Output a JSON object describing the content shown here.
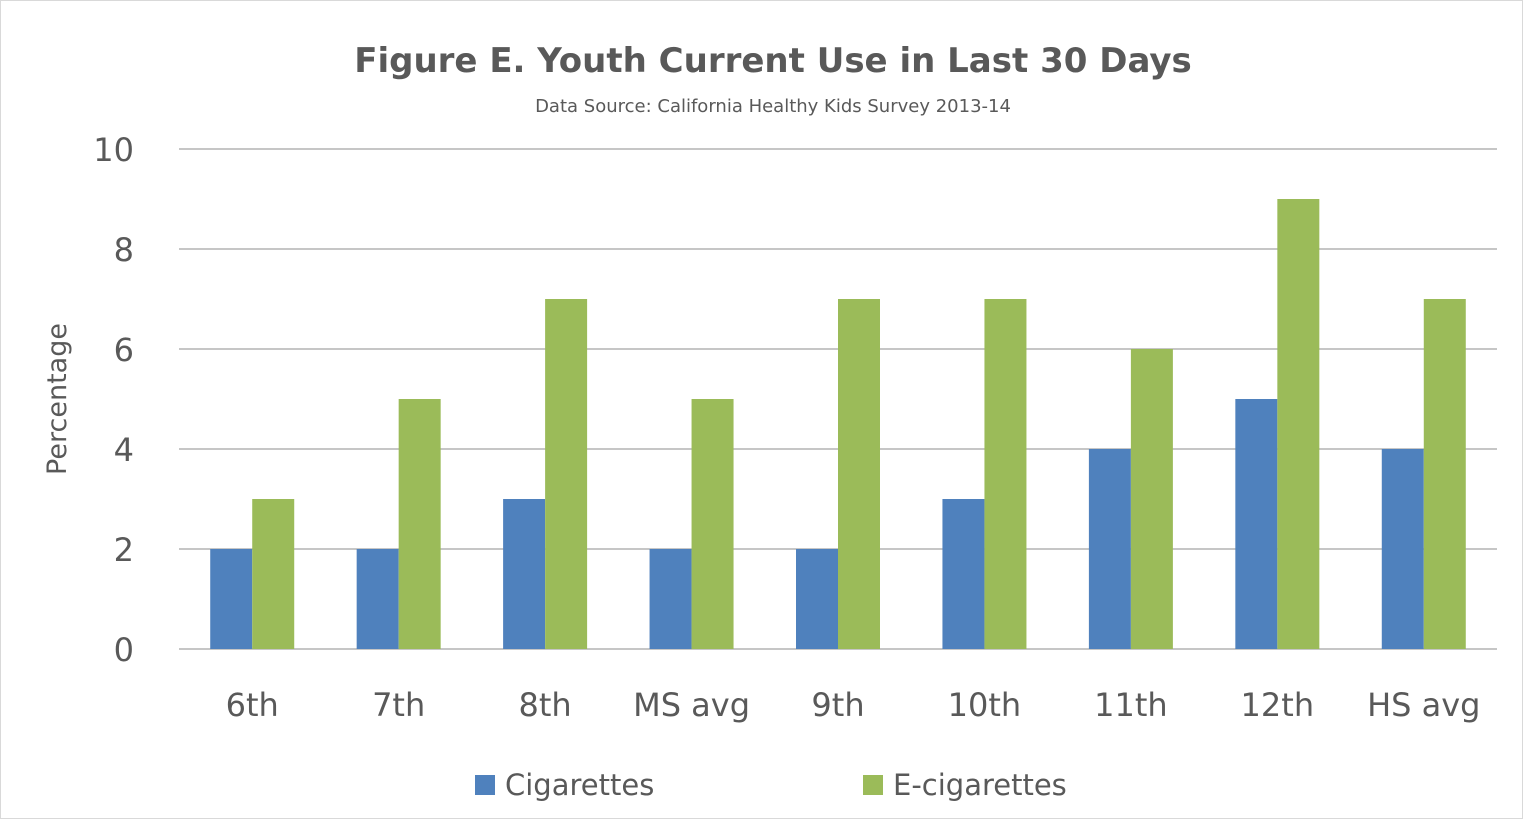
{
  "chart_data": {
    "type": "bar",
    "title": "Figure E. Youth Current Use in Last 30 Days",
    "subtitle": "Data Source: California Healthy Kids Survey 2013-14",
    "xlabel": "",
    "ylabel": "Percentage",
    "categories": [
      "6th",
      "7th",
      "8th",
      "MS avg",
      "9th",
      "10th",
      "11th",
      "12th",
      "HS avg"
    ],
    "series": [
      {
        "name": "Cigarettes",
        "color": "#4f81bd",
        "values": [
          2,
          2,
          3,
          2,
          2,
          3,
          4,
          5,
          4
        ]
      },
      {
        "name": "E-cigarettes",
        "color": "#9bbb59",
        "values": [
          3,
          5,
          7,
          5,
          7,
          7,
          6,
          9,
          7
        ]
      }
    ],
    "ylim": [
      0,
      10
    ],
    "yticks": [
      0,
      2,
      4,
      6,
      8,
      10
    ],
    "grid": true,
    "legend_position": "bottom"
  }
}
